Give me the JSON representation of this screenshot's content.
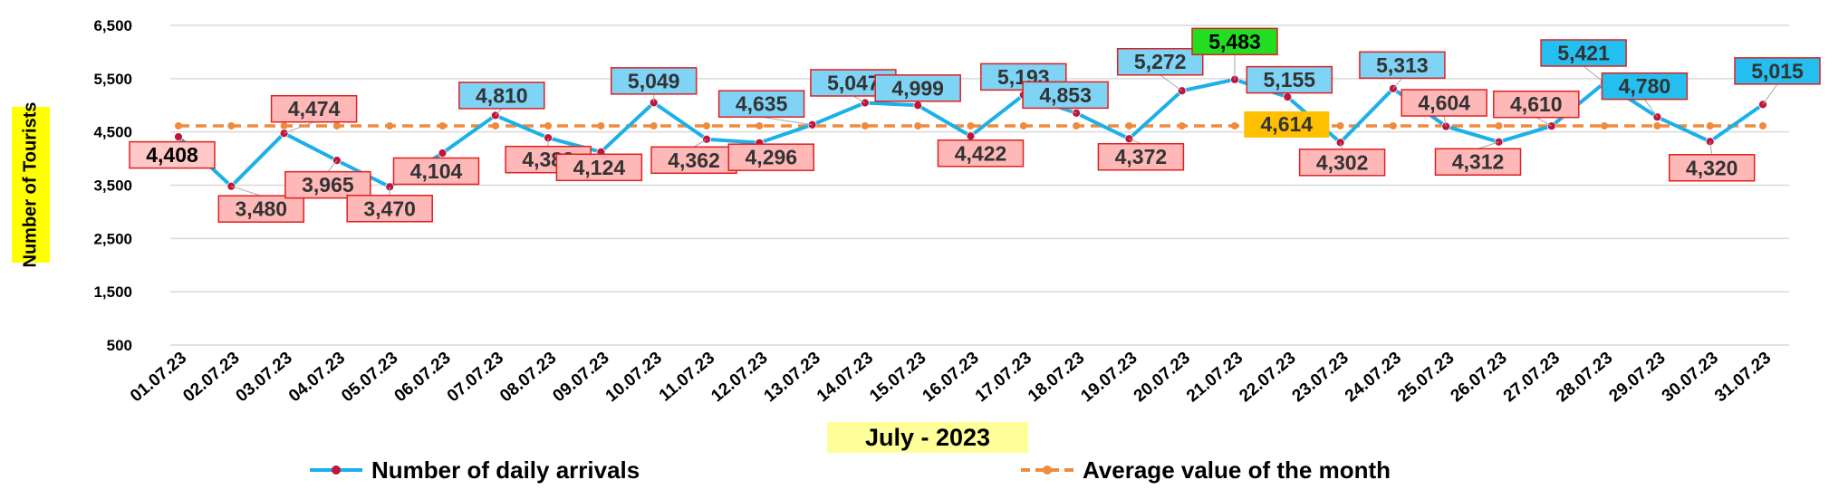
{
  "chart_data": {
    "type": "line",
    "ylabel": "Number of Tourists",
    "xlabel": "July - 2023",
    "yticks": [
      "500",
      "1,500",
      "2,500",
      "3,500",
      "4,500",
      "5,500",
      "6,500"
    ],
    "ylim": [
      500,
      6500
    ],
    "grid": true,
    "legend_position": "bottom",
    "categories": [
      "01.07.23",
      "02.07.23",
      "03.07.23",
      "04.07.23",
      "05.07.23",
      "06.07.23",
      "07.07.23",
      "08.07.23",
      "09.07.23",
      "10.07.23",
      "11.07.23",
      "12.07.23",
      "13.07.23",
      "14.07.23",
      "15.07.23",
      "16.07.23",
      "17.07.23",
      "18.07.23",
      "19.07.23",
      "20.07.23",
      "21.07.23",
      "22.07.23",
      "23.07.23",
      "24.07.23",
      "25.07.23",
      "26.07.23",
      "27.07.23",
      "28.07.23",
      "29.07.23",
      "30.07.23",
      "31.07.23"
    ],
    "series": [
      {
        "name": "Number of daily arrivals",
        "color": "#1cb0e8",
        "marker_color": "#c0143c",
        "values": [
          4408,
          3480,
          4474,
          3965,
          3470,
          4104,
          4810,
          4389,
          4124,
          5049,
          4362,
          4296,
          4635,
          5047,
          4999,
          4422,
          5193,
          4853,
          4372,
          5272,
          5483,
          5155,
          4302,
          5313,
          4604,
          4312,
          4610,
          5421,
          4780,
          4320,
          5015
        ],
        "labels": [
          "4,408",
          "3,480",
          "4,474",
          "3,965",
          "3,470",
          "4,104",
          "4,810",
          "4,389",
          "4,124",
          "5,049",
          "4,362",
          "4,296",
          "4,635",
          "5,047",
          "4,999",
          "4,422",
          "5,193",
          "4,853",
          "4,372",
          "5,272",
          "5,483",
          "5,155",
          "4,302",
          "5,313",
          "4,604",
          "4,312",
          "4,610",
          "5,421",
          "4,780",
          "4,320",
          "5,015"
        ]
      },
      {
        "name": "Average value of the month",
        "color": "#f08a3c",
        "style": "dashed",
        "value": 4614,
        "label": "4,614"
      }
    ],
    "colors": {
      "above_label_fill": "#7fd3f5",
      "below_label_fill": "#ffb8b8",
      "label_border": "#e02020",
      "max_label_fill": "#22dd22",
      "first_label_fill": "#ffc8c8",
      "dark_above_fill": "#22bff0",
      "average_label_fill": "#ffc000"
    }
  }
}
